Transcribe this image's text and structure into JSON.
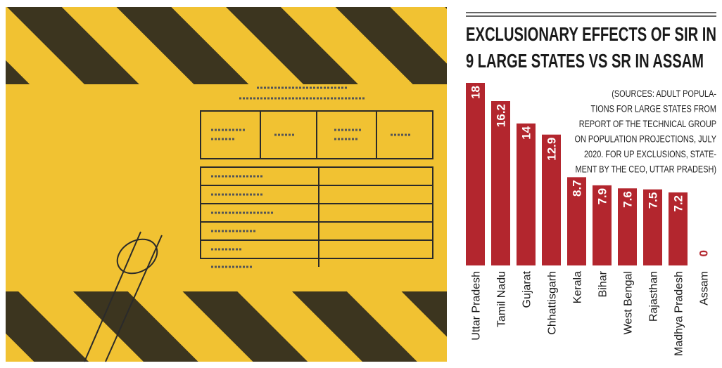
{
  "chart_data": {
    "type": "bar",
    "title_lines": [
      "EXCLUSIONARY EFFECTS OF SIR IN",
      "9 LARGE STATES VS SR IN ASSAM"
    ],
    "note_lines": [
      "(SOURCES: ADULT POPULA-",
      "TIONS FOR LARGE STATES FROM",
      "REPORT OF THE TECHNICAL GROUP",
      "ON POPULATION PROJECTIONS, JULY",
      "2020. FOR UP EXCLUSIONS, STATE-",
      "MENT BY THE CEO, UTTAR PRADESH)"
    ],
    "categories": [
      "Uttar Pradesh",
      "Tamil Nadu",
      "Gujarat",
      "Chhattisgarh",
      "Kerala",
      "Bihar",
      "West Bengal",
      "Rajasthan",
      "Madhya Pradesh",
      "Assam"
    ],
    "values": [
      18,
      16.2,
      14,
      12.9,
      8.7,
      7.9,
      7.6,
      7.5,
      7.2,
      0
    ],
    "color": "#b3262e"
  }
}
